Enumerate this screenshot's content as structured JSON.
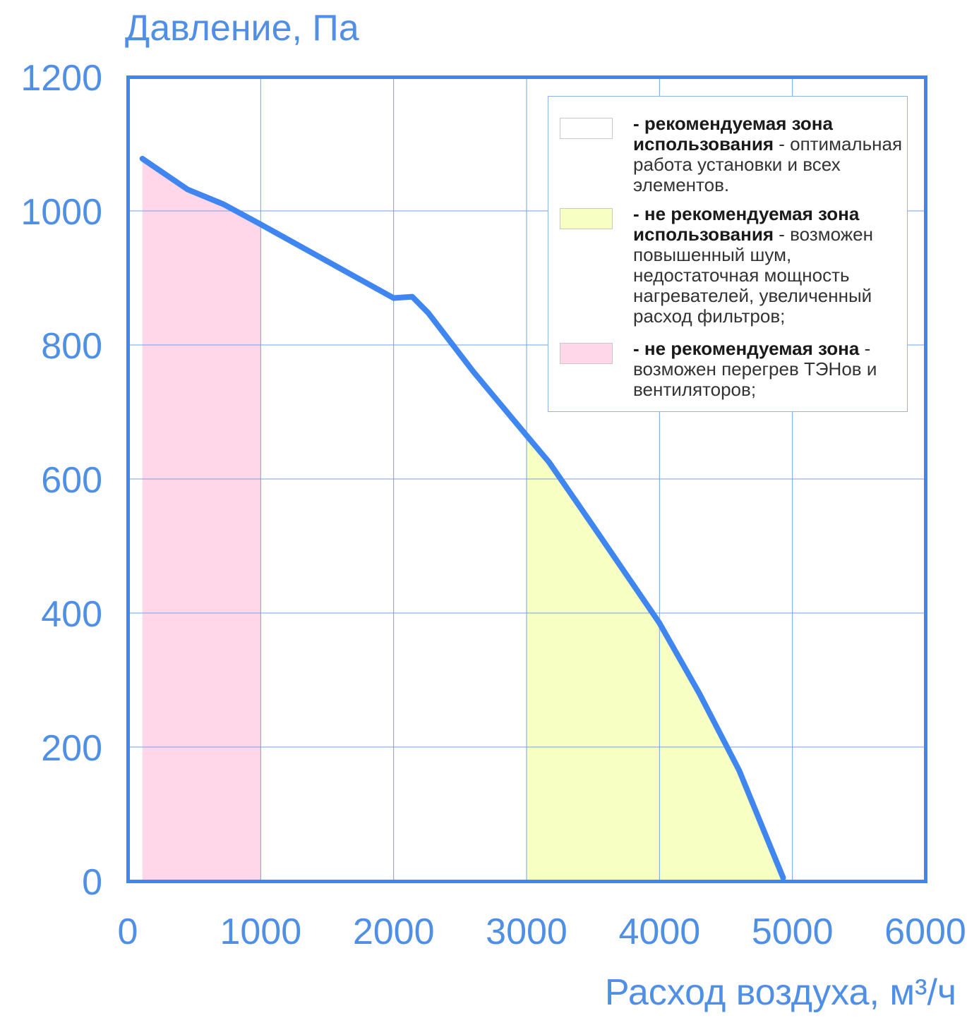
{
  "chart_data": {
    "type": "line",
    "ylabel": "Давление, Па",
    "xlabel": "Расход воздуха, м³/ч",
    "xlim": [
      0,
      6000
    ],
    "ylim": [
      0,
      1200
    ],
    "x_ticks": [
      "0",
      "1000",
      "2000",
      "3000",
      "4000",
      "5000",
      "6000"
    ],
    "y_ticks": [
      "0",
      "200",
      "400",
      "600",
      "800",
      "1000",
      "1200"
    ],
    "grid": true,
    "series": [
      {
        "color": "#3f86f0",
        "x": [
          110,
          450,
          720,
          1000,
          1500,
          2000,
          2140,
          2260,
          2600,
          3000,
          3170,
          3500,
          4000,
          4300,
          4600,
          4930
        ],
        "y": [
          1078,
          1032,
          1010,
          980,
          925,
          870,
          872,
          848,
          760,
          665,
          625,
          530,
          385,
          280,
          165,
          5
        ]
      }
    ],
    "zones": [
      {
        "kind": "pink",
        "color": "#ffd7e8",
        "x_from": 110,
        "x_to": 1000
      },
      {
        "kind": "yellow",
        "color": "#f8ffc2",
        "x_from": 3000,
        "x_to": 4930
      }
    ],
    "legend": {
      "placement": "top-right",
      "items": [
        {
          "swatch_color": "#ffffff",
          "bold": "- рекомендуемая зона использования",
          "text": " - оптимальная работа установки и всех элементов."
        },
        {
          "swatch_color": "#f8ffc2",
          "bold": "- не рекомендуемая зона использования",
          "text": " - возможен повышенный шум, недостаточная мощность нагревателей, увеличенный расход фильтров;"
        },
        {
          "swatch_color": "#ffd7e8",
          "bold": "- не рекомендуемая зона",
          "text": " - возможен перегрев ТЭНов и вентиляторов;"
        }
      ]
    }
  },
  "colors": {
    "accent": "#3f86f0",
    "axis": "#3f86f0",
    "grid": "#6fa2ea",
    "text": "#4f8fe6"
  }
}
